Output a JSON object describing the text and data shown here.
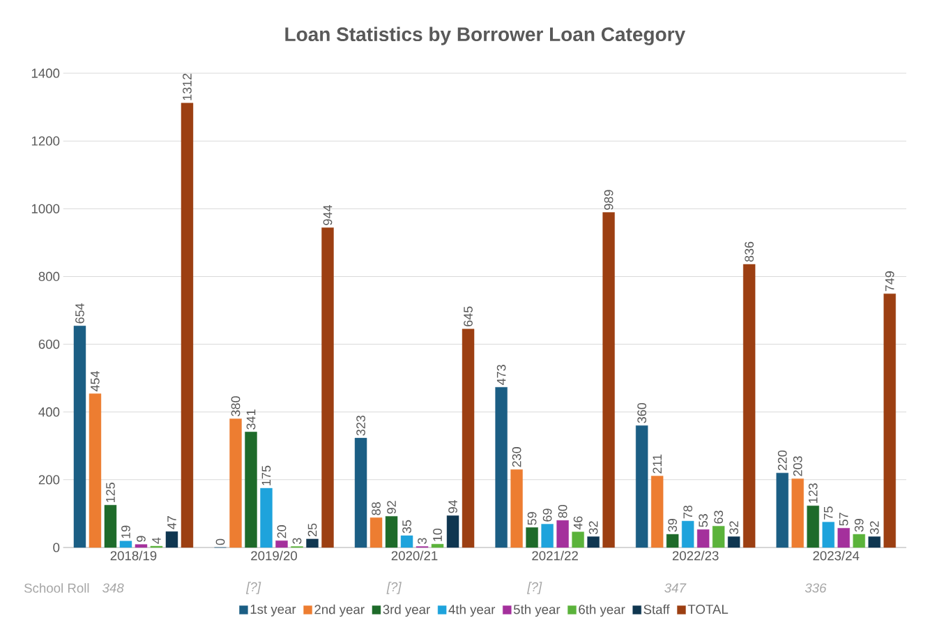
{
  "chart_data": {
    "type": "bar",
    "title": "Loan Statistics by Borrower Loan Category",
    "categories": [
      "2018/19",
      "2019/20",
      "2020/21",
      "2021/22",
      "2022/23",
      "2023/24"
    ],
    "series": [
      {
        "name": "1st year",
        "color": "#1b5e84",
        "values": [
          654,
          0,
          323,
          473,
          360,
          220
        ]
      },
      {
        "name": "2nd year",
        "color": "#ed7d31",
        "values": [
          454,
          380,
          88,
          230,
          211,
          203
        ]
      },
      {
        "name": "3rd year",
        "color": "#1e6b2a",
        "values": [
          125,
          341,
          92,
          59,
          39,
          123
        ]
      },
      {
        "name": "4th year",
        "color": "#1ea3dc",
        "values": [
          19,
          175,
          35,
          69,
          78,
          75
        ]
      },
      {
        "name": "5th year",
        "color": "#a4309c",
        "values": [
          9,
          20,
          3,
          80,
          53,
          57
        ]
      },
      {
        "name": "6th year",
        "color": "#5bb33b",
        "values": [
          4,
          3,
          10,
          46,
          63,
          39
        ]
      },
      {
        "name": "Staff",
        "color": "#0f3650",
        "values": [
          47,
          25,
          94,
          32,
          32,
          32
        ]
      },
      {
        "name": "TOTAL",
        "color": "#9c3f12",
        "values": [
          1312,
          944,
          645,
          989,
          836,
          749
        ]
      }
    ],
    "ylim": [
      0,
      1400
    ],
    "yticks": [
      0,
      200,
      400,
      600,
      800,
      1000,
      1200,
      1400
    ],
    "grid": "y",
    "legend": "bottom",
    "data_labels": true,
    "annotations": [
      "School Roll",
      "348",
      "[?]",
      "[?]",
      "[?]",
      "347",
      "336"
    ]
  }
}
